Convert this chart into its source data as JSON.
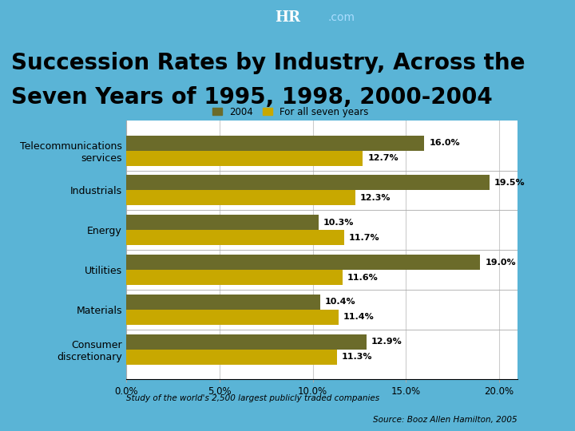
{
  "title_line1": "Succession Rates by Industry, Across the",
  "title_line2": "Seven Years of 1995, 1998, 2000-2004",
  "categories": [
    "Consumer\ndiscretionary",
    "Materials",
    "Utilities",
    "Energy",
    "Industrials",
    "Telecommunications\nservices"
  ],
  "values_2004": [
    12.9,
    10.4,
    19.0,
    10.3,
    19.5,
    16.0
  ],
  "values_seven": [
    11.3,
    11.4,
    11.6,
    11.7,
    12.3,
    12.7
  ],
  "color_2004": "#6b6b2a",
  "color_seven": "#c8a800",
  "legend_2004": "2004",
  "legend_seven": "For all seven years",
  "xlim": [
    0,
    21
  ],
  "xtick_labels": [
    "0.0%",
    "5.0%",
    "10.0%",
    "15.0%",
    "20.0%"
  ],
  "xtick_values": [
    0,
    5,
    10,
    15,
    20
  ],
  "bg_color": "#5ab4d6",
  "bg_header": "#1a4f8a",
  "chart_bg": "#ffffff",
  "footer_text": "Study of the world's 2,500 largest publicly traded companies",
  "source_text": "Source: Booz Allen Hamilton, 2005",
  "title_fontsize": 20,
  "bar_height": 0.38
}
